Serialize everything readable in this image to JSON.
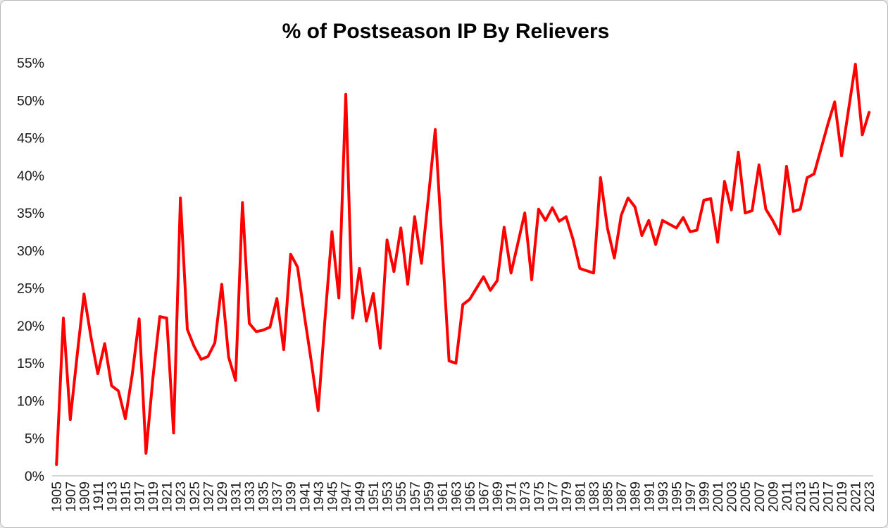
{
  "window": {
    "background_color": "#FFFFFF",
    "border_color": "#B9B9B9"
  },
  "chart_data": {
    "type": "line",
    "title": "% of Postseason IP By Relievers",
    "xlabel": "",
    "ylabel": "",
    "legend": "none",
    "grid": false,
    "series_name": "% of Postseason IP By Relievers",
    "series_color": "#FF0000",
    "axis_line_color": "#BFBFBF",
    "label_color": "#1A1A1A",
    "ylim": [
      0,
      55
    ],
    "y_tick_step": 5,
    "y_tick_suffix": "%",
    "y_tick_labels": [
      "0%",
      "5%",
      "10%",
      "15%",
      "20%",
      "25%",
      "30%",
      "35%",
      "40%",
      "45%",
      "50%",
      "55%"
    ],
    "x_tick_every": 2,
    "x_tick_rotation_degrees": -90,
    "x_first_label": "1905",
    "x_last_label": "2023",
    "note_1994": "no value plotted for 1994 (line connects 1993 to 1995)",
    "x": [
      1905,
      1906,
      1907,
      1908,
      1909,
      1910,
      1911,
      1912,
      1913,
      1914,
      1915,
      1916,
      1917,
      1918,
      1919,
      1920,
      1921,
      1922,
      1923,
      1924,
      1925,
      1926,
      1927,
      1928,
      1929,
      1930,
      1931,
      1932,
      1933,
      1934,
      1935,
      1936,
      1937,
      1938,
      1939,
      1940,
      1941,
      1942,
      1943,
      1944,
      1945,
      1946,
      1947,
      1948,
      1949,
      1950,
      1951,
      1952,
      1953,
      1954,
      1955,
      1956,
      1957,
      1958,
      1959,
      1960,
      1961,
      1962,
      1963,
      1964,
      1965,
      1966,
      1967,
      1968,
      1969,
      1970,
      1971,
      1972,
      1973,
      1974,
      1975,
      1976,
      1977,
      1978,
      1979,
      1980,
      1981,
      1982,
      1983,
      1984,
      1985,
      1986,
      1987,
      1988,
      1989,
      1990,
      1991,
      1992,
      1993,
      1994,
      1995,
      1996,
      1997,
      1998,
      1999,
      2000,
      2001,
      2002,
      2003,
      2004,
      2005,
      2006,
      2007,
      2008,
      2009,
      2010,
      2011,
      2012,
      2013,
      2014,
      2015,
      2016,
      2017,
      2018,
      2019,
      2020,
      2021,
      2022,
      2023
    ],
    "values": [
      1.5,
      21,
      7.5,
      16,
      24.2,
      18.5,
      13.6,
      17.6,
      12,
      11.3,
      7.6,
      13.5,
      20.9,
      3,
      13,
      21.2,
      21,
      5.7,
      37,
      19.5,
      17.2,
      15.5,
      15.9,
      17.7,
      25.5,
      15.8,
      12.7,
      36.4,
      20.3,
      19.2,
      19.4,
      19.8,
      23.6,
      16.8,
      29.5,
      27.8,
      21.3,
      15.2,
      8.7,
      21,
      32.5,
      23.7,
      50.8,
      21,
      27.6,
      20.6,
      24.3,
      17,
      31.4,
      27.2,
      33,
      25.5,
      34.5,
      28.3,
      37,
      46.1,
      30.5,
      15.3,
      15,
      22.8,
      23.5,
      25,
      26.5,
      24.7,
      26,
      33.1,
      27,
      31,
      35,
      26.1,
      35.5,
      34,
      35.7,
      33.9,
      34.5,
      31.5,
      27.6,
      27.3,
      27,
      39.7,
      33,
      29,
      34.7,
      37,
      35.8,
      32,
      34,
      30.8,
      34,
      null,
      33,
      34.4,
      32.5,
      32.7,
      36.7,
      36.9,
      31.1,
      39.2,
      35.4,
      43.1,
      35,
      35.3,
      41.4,
      35.5,
      34,
      32.2,
      41.2,
      35.2,
      35.5,
      39.7,
      40.2,
      43.5,
      46.8,
      49.8,
      42.6,
      48.7,
      54.8,
      45.4,
      48.4
    ]
  }
}
